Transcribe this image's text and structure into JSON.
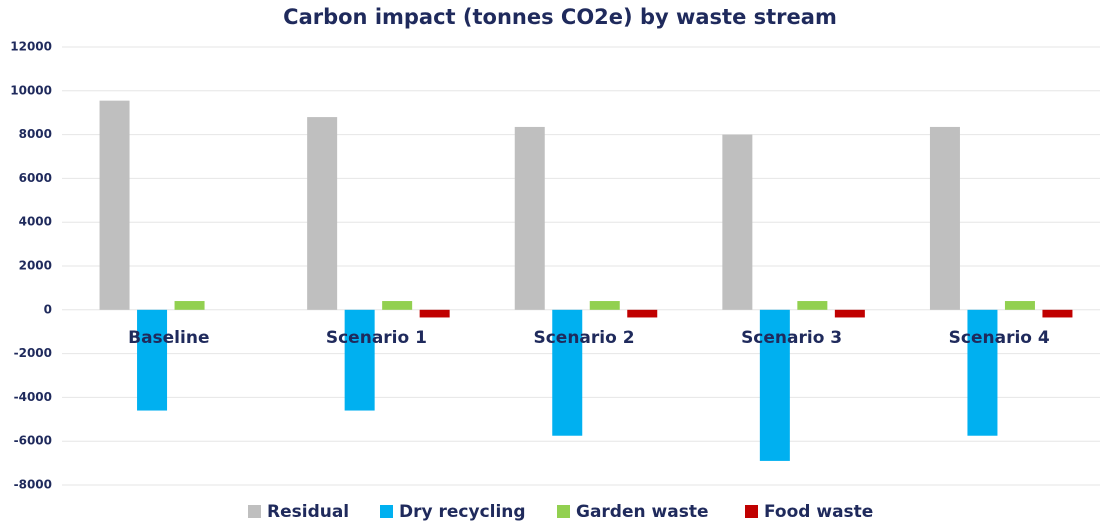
{
  "chart_data": {
    "type": "bar",
    "title": "Carbon impact (tonnes CO2e) by waste stream",
    "categories": [
      "Baseline",
      "Scenario 1",
      "Scenario 2",
      "Scenario 3",
      "Scenario 4"
    ],
    "series": [
      {
        "name": "Residual",
        "color": "#bfbfbf",
        "values": [
          9550,
          8800,
          8350,
          8000,
          8350
        ]
      },
      {
        "name": "Dry recycling",
        "color": "#00b0f0",
        "values": [
          -4600,
          -4600,
          -5750,
          -6900,
          -5750
        ]
      },
      {
        "name": "Garden waste",
        "color": "#92d050",
        "values": [
          400,
          400,
          400,
          400,
          400
        ]
      },
      {
        "name": "Food waste",
        "color": "#c00000",
        "values": [
          0,
          -350,
          -350,
          -350,
          -350
        ]
      }
    ],
    "ylim": [
      -8000,
      12000
    ],
    "yticks": [
      -8000,
      -6000,
      -4000,
      -2000,
      0,
      2000,
      4000,
      6000,
      8000,
      10000,
      12000
    ],
    "grid": true,
    "legend": "bottom"
  }
}
